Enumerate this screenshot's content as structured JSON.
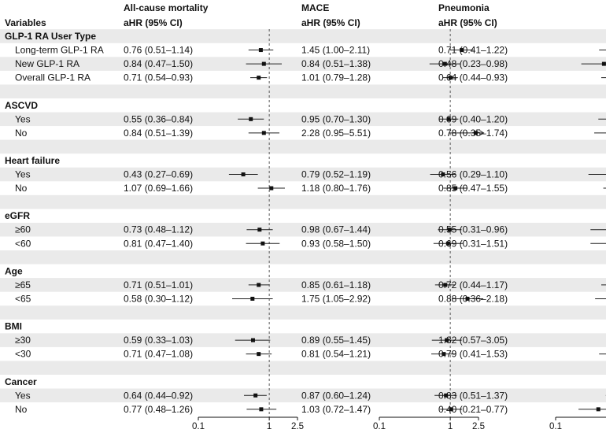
{
  "chart_data": {
    "type": "forest",
    "variables_header": "Variables",
    "columns": [
      {
        "title": "All-cause mortality",
        "subtitle": "aHR (95% CI)"
      },
      {
        "title": "MACE",
        "subtitle": "aHR (95% CI)"
      },
      {
        "title": "Pneumonia",
        "subtitle": "aHR (95% CI)"
      }
    ],
    "x_axis": {
      "scale": "log",
      "reference": 1,
      "ticks": [
        0.1,
        1,
        2.5
      ],
      "tick_labels": [
        "0.1",
        "1",
        "2.5"
      ],
      "range": [
        0.1,
        2.5
      ]
    },
    "groups": [
      {
        "name": "GLP-1 RA User Type",
        "rows": [
          {
            "label": "Long-term GLP-1 RA",
            "text": [
              "0.76 (0.51–1.14)",
              "1.45 (1.00–2.11)",
              "0.71 (0.41–1.22)"
            ],
            "hr": [
              0.76,
              1.45,
              0.71
            ],
            "lo": [
              0.51,
              1.0,
              0.41
            ],
            "hi": [
              1.14,
              2.11,
              1.22
            ]
          },
          {
            "label": "New GLP-1 RA",
            "text": [
              "0.84 (0.47–1.50)",
              "0.84 (0.51–1.38)",
              "0.48 (0.23–0.98)"
            ],
            "hr": [
              0.84,
              0.84,
              0.48
            ],
            "lo": [
              0.47,
              0.51,
              0.23
            ],
            "hi": [
              1.5,
              1.38,
              0.98
            ]
          },
          {
            "label": "Overall GLP-1 RA",
            "text": [
              "0.71 (0.54–0.93)",
              "1.01 (0.79–1.28)",
              "0.64 (0.44–0.93)"
            ],
            "hr": [
              0.71,
              1.01,
              0.64
            ],
            "lo": [
              0.54,
              0.79,
              0.44
            ],
            "hi": [
              0.93,
              1.28,
              0.93
            ]
          }
        ]
      },
      {
        "name": "ASCVD",
        "rows": [
          {
            "label": "Yes",
            "text": [
              "0.55 (0.36–0.84)",
              "0.95 (0.70–1.30)",
              "0.69 (0.40–1.20)"
            ],
            "hr": [
              0.55,
              0.95,
              0.69
            ],
            "lo": [
              0.36,
              0.7,
              0.4
            ],
            "hi": [
              0.84,
              1.3,
              1.2
            ]
          },
          {
            "label": "No",
            "text": [
              "0.84 (0.51–1.39)",
              "2.28 (0.95–5.51)",
              "0.78 (0.35–1.74)"
            ],
            "hr": [
              0.84,
              2.28,
              0.78
            ],
            "lo": [
              0.51,
              0.95,
              0.35
            ],
            "hi": [
              1.39,
              5.51,
              1.74
            ]
          }
        ]
      },
      {
        "name": "Heart failure",
        "rows": [
          {
            "label": "Yes",
            "text": [
              "0.43 (0.27–0.69)",
              "0.79 (0.52–1.19)",
              "0.56 (0.29–1.10)"
            ],
            "hr": [
              0.43,
              0.79,
              0.56
            ],
            "lo": [
              0.27,
              0.52,
              0.29
            ],
            "hi": [
              0.69,
              1.19,
              1.1
            ]
          },
          {
            "label": "No",
            "text": [
              "1.07 (0.69–1.66)",
              "1.18 (0.80–1.76)",
              "0.85 (0.47–1.55)"
            ],
            "hr": [
              1.07,
              1.18,
              0.85
            ],
            "lo": [
              0.69,
              0.8,
              0.47
            ],
            "hi": [
              1.66,
              1.76,
              1.55
            ]
          }
        ]
      },
      {
        "name": "eGFR",
        "rows": [
          {
            "label": "≥60",
            "text": [
              "0.73 (0.48–1.12)",
              "0.98 (0.67–1.44)",
              "0.55 (0.31–0.96)"
            ],
            "hr": [
              0.73,
              0.98,
              0.55
            ],
            "lo": [
              0.48,
              0.67,
              0.31
            ],
            "hi": [
              1.12,
              1.44,
              0.96
            ]
          },
          {
            "label": "<60",
            "text": [
              "0.81 (0.47–1.40)",
              "0.93 (0.58–1.50)",
              "0.69 (0.31–1.51)"
            ],
            "hr": [
              0.81,
              0.93,
              0.69
            ],
            "lo": [
              0.47,
              0.58,
              0.31
            ],
            "hi": [
              1.4,
              1.5,
              1.51
            ]
          }
        ]
      },
      {
        "name": "Age",
        "rows": [
          {
            "label": "≥65",
            "text": [
              "0.71 (0.51–1.01)",
              "0.85 (0.61–1.18)",
              "0.72 (0.44–1.17)"
            ],
            "hr": [
              0.71,
              0.85,
              0.72
            ],
            "lo": [
              0.51,
              0.61,
              0.44
            ],
            "hi": [
              1.01,
              1.18,
              1.17
            ]
          },
          {
            "label": "<65",
            "text": [
              "0.58 (0.30–1.12)",
              "1.75 (1.05–2.92)",
              "0.88 (0.36–2.18)"
            ],
            "hr": [
              0.58,
              1.75,
              0.88
            ],
            "lo": [
              0.3,
              1.05,
              0.36
            ],
            "hi": [
              1.12,
              2.92,
              2.18
            ]
          }
        ]
      },
      {
        "name": "BMI",
        "rows": [
          {
            "label": "≥30",
            "text": [
              "0.59 (0.33–1.03)",
              "0.89 (0.55–1.45)",
              "1.32 (0.57–3.05)"
            ],
            "hr": [
              0.59,
              0.89,
              1.32
            ],
            "lo": [
              0.33,
              0.55,
              0.57
            ],
            "hi": [
              1.03,
              1.45,
              3.05
            ]
          },
          {
            "label": "<30",
            "text": [
              "0.71 (0.47–1.08)",
              "0.81 (0.54–1.21)",
              "0.79 (0.41–1.53)"
            ],
            "hr": [
              0.71,
              0.81,
              0.79
            ],
            "lo": [
              0.47,
              0.54,
              0.41
            ],
            "hi": [
              1.08,
              1.21,
              1.53
            ]
          }
        ]
      },
      {
        "name": "Cancer",
        "rows": [
          {
            "label": "Yes",
            "text": [
              "0.64 (0.44–0.92)",
              "0.87 (0.60–1.24)",
              "0.83 (0.51–1.37)"
            ],
            "hr": [
              0.64,
              0.87,
              0.83
            ],
            "lo": [
              0.44,
              0.6,
              0.51
            ],
            "hi": [
              0.92,
              1.24,
              1.37
            ]
          },
          {
            "label": "No",
            "text": [
              "0.77 (0.48–1.26)",
              "1.03 (0.72–1.47)",
              "0.40 (0.21–0.77)"
            ],
            "hr": [
              0.77,
              1.03,
              0.4
            ],
            "lo": [
              0.48,
              0.72,
              0.21
            ],
            "hi": [
              1.26,
              1.47,
              0.77
            ]
          }
        ]
      }
    ],
    "colors": {
      "band": "#eaeaea",
      "line": "#222222",
      "point": "#111111",
      "reference": "#555555"
    }
  }
}
